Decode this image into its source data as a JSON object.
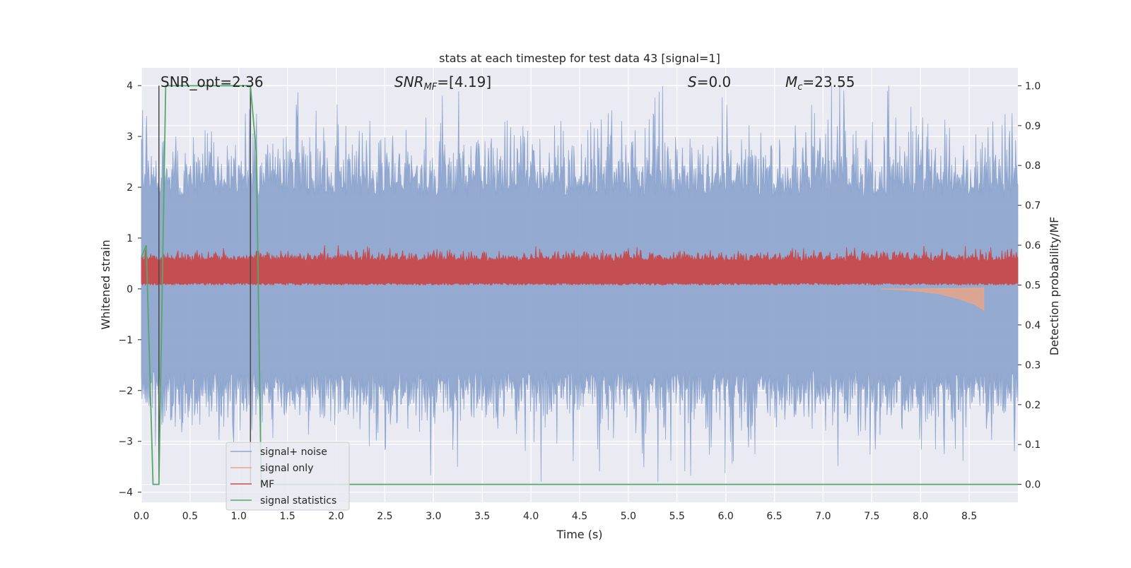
{
  "chart_data": {
    "type": "line",
    "title": "stats at each timestep for test data 43 [signal=1]",
    "xlabel": "Time (s)",
    "ylabel_left": "Whitened strain",
    "ylabel_right": "Detection probability/MF",
    "xlim": [
      0,
      9.0
    ],
    "ylim_left": [
      -4.2,
      4.35
    ],
    "ylim_right": [
      -0.045,
      1.045
    ],
    "x_ticks": [
      "0.0",
      "0.5",
      "1.0",
      "1.5",
      "2.0",
      "2.5",
      "3.0",
      "3.5",
      "4.0",
      "4.5",
      "5.0",
      "5.5",
      "6.0",
      "6.5",
      "7.0",
      "7.5",
      "8.0",
      "8.5"
    ],
    "y_ticks_left": [
      "4",
      "3",
      "2",
      "1",
      "0",
      "−1",
      "−2",
      "−3",
      "−4"
    ],
    "y_ticks_right": [
      "1.0",
      "0.9",
      "0.8",
      "0.7",
      "0.6",
      "0.5",
      "0.4",
      "0.3",
      "0.2",
      "0.1",
      "0.0"
    ],
    "grid": true,
    "legend_position": "lower-left",
    "annotations": {
      "snr_opt": "SNR_opt=2.36",
      "snr_mf_main": "SNR",
      "snr_mf_sub": "MF",
      "snr_mf_value": "=[4.19]",
      "s_main": "S",
      "s_value": "=0.0",
      "mc_main": "M",
      "mc_sub": "c",
      "mc_value": "=23.55"
    },
    "vertical_lines_x": [
      0.18,
      1.12
    ],
    "series": [
      {
        "name": "signal+ noise",
        "color": "#8fa6cf",
        "description_values": "whitened strain noise, range approx -3.8 to 4.0",
        "envelope_typical": [
          -1.6,
          1.8
        ]
      },
      {
        "name": "signal only",
        "color": "#e8a58a",
        "x": [
          7.6,
          7.8,
          8.0,
          8.2,
          8.4,
          8.55,
          8.65
        ],
        "y": [
          0.0,
          -0.02,
          -0.05,
          -0.1,
          -0.2,
          -0.3,
          -0.42
        ]
      },
      {
        "name": "MF",
        "color": "#c44e52",
        "axis": "right",
        "typical_range": [
          0.5,
          0.57
        ],
        "peak_values": [
          {
            "x": 6.95,
            "y": 0.6
          }
        ]
      },
      {
        "name": "signal statistics",
        "color": "#55a868",
        "axis": "right",
        "x": [
          0.0,
          0.05,
          0.12,
          0.18,
          0.25,
          1.12,
          1.18,
          1.23,
          1.3,
          9.0
        ],
        "y": [
          0.57,
          0.6,
          0.0,
          0.0,
          1.0,
          1.0,
          0.83,
          0.0,
          0.0,
          0.0
        ]
      }
    ]
  }
}
